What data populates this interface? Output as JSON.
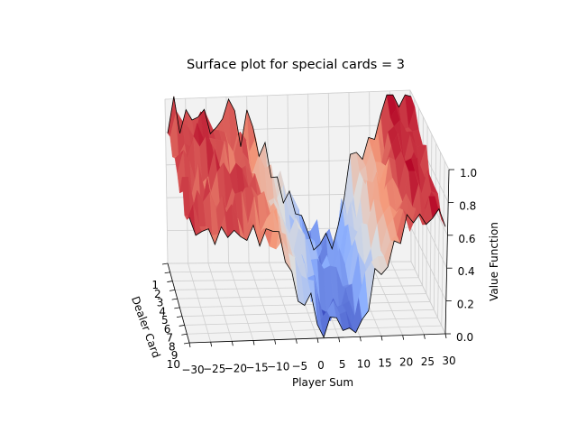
{
  "chart_data": {
    "type": "surface",
    "title": "Surface plot for special cards = 3",
    "xlabel": "Player Sum",
    "ylabel": "Dealer Card",
    "zlabel": "Value Function",
    "x_ticks": [
      "−30",
      "−25",
      "−20",
      "−15",
      "−10",
      "−5",
      "0",
      "5",
      "10",
      "15",
      "20",
      "25",
      "30"
    ],
    "y_ticks": [
      "1",
      "2",
      "3",
      "4",
      "5",
      "6",
      "7",
      "8",
      "9",
      "10"
    ],
    "z_ticks": [
      "0.0",
      "0.2",
      "0.4",
      "0.6",
      "0.8",
      "1.0"
    ],
    "xlim": [
      -30,
      30
    ],
    "ylim": [
      1,
      10
    ],
    "zlim": [
      0,
      1
    ],
    "colormap": "coolwarm",
    "grid": true,
    "value_profile": {
      "x": [
        -30,
        -25,
        -20,
        -15,
        -10,
        -5,
        0,
        2,
        5,
        8,
        10,
        15,
        20,
        25,
        30
      ],
      "value": [
        0.93,
        0.9,
        0.88,
        0.84,
        0.76,
        0.55,
        0.35,
        0.25,
        0.2,
        0.15,
        0.2,
        0.5,
        0.8,
        0.92,
        0.96
      ]
    }
  }
}
